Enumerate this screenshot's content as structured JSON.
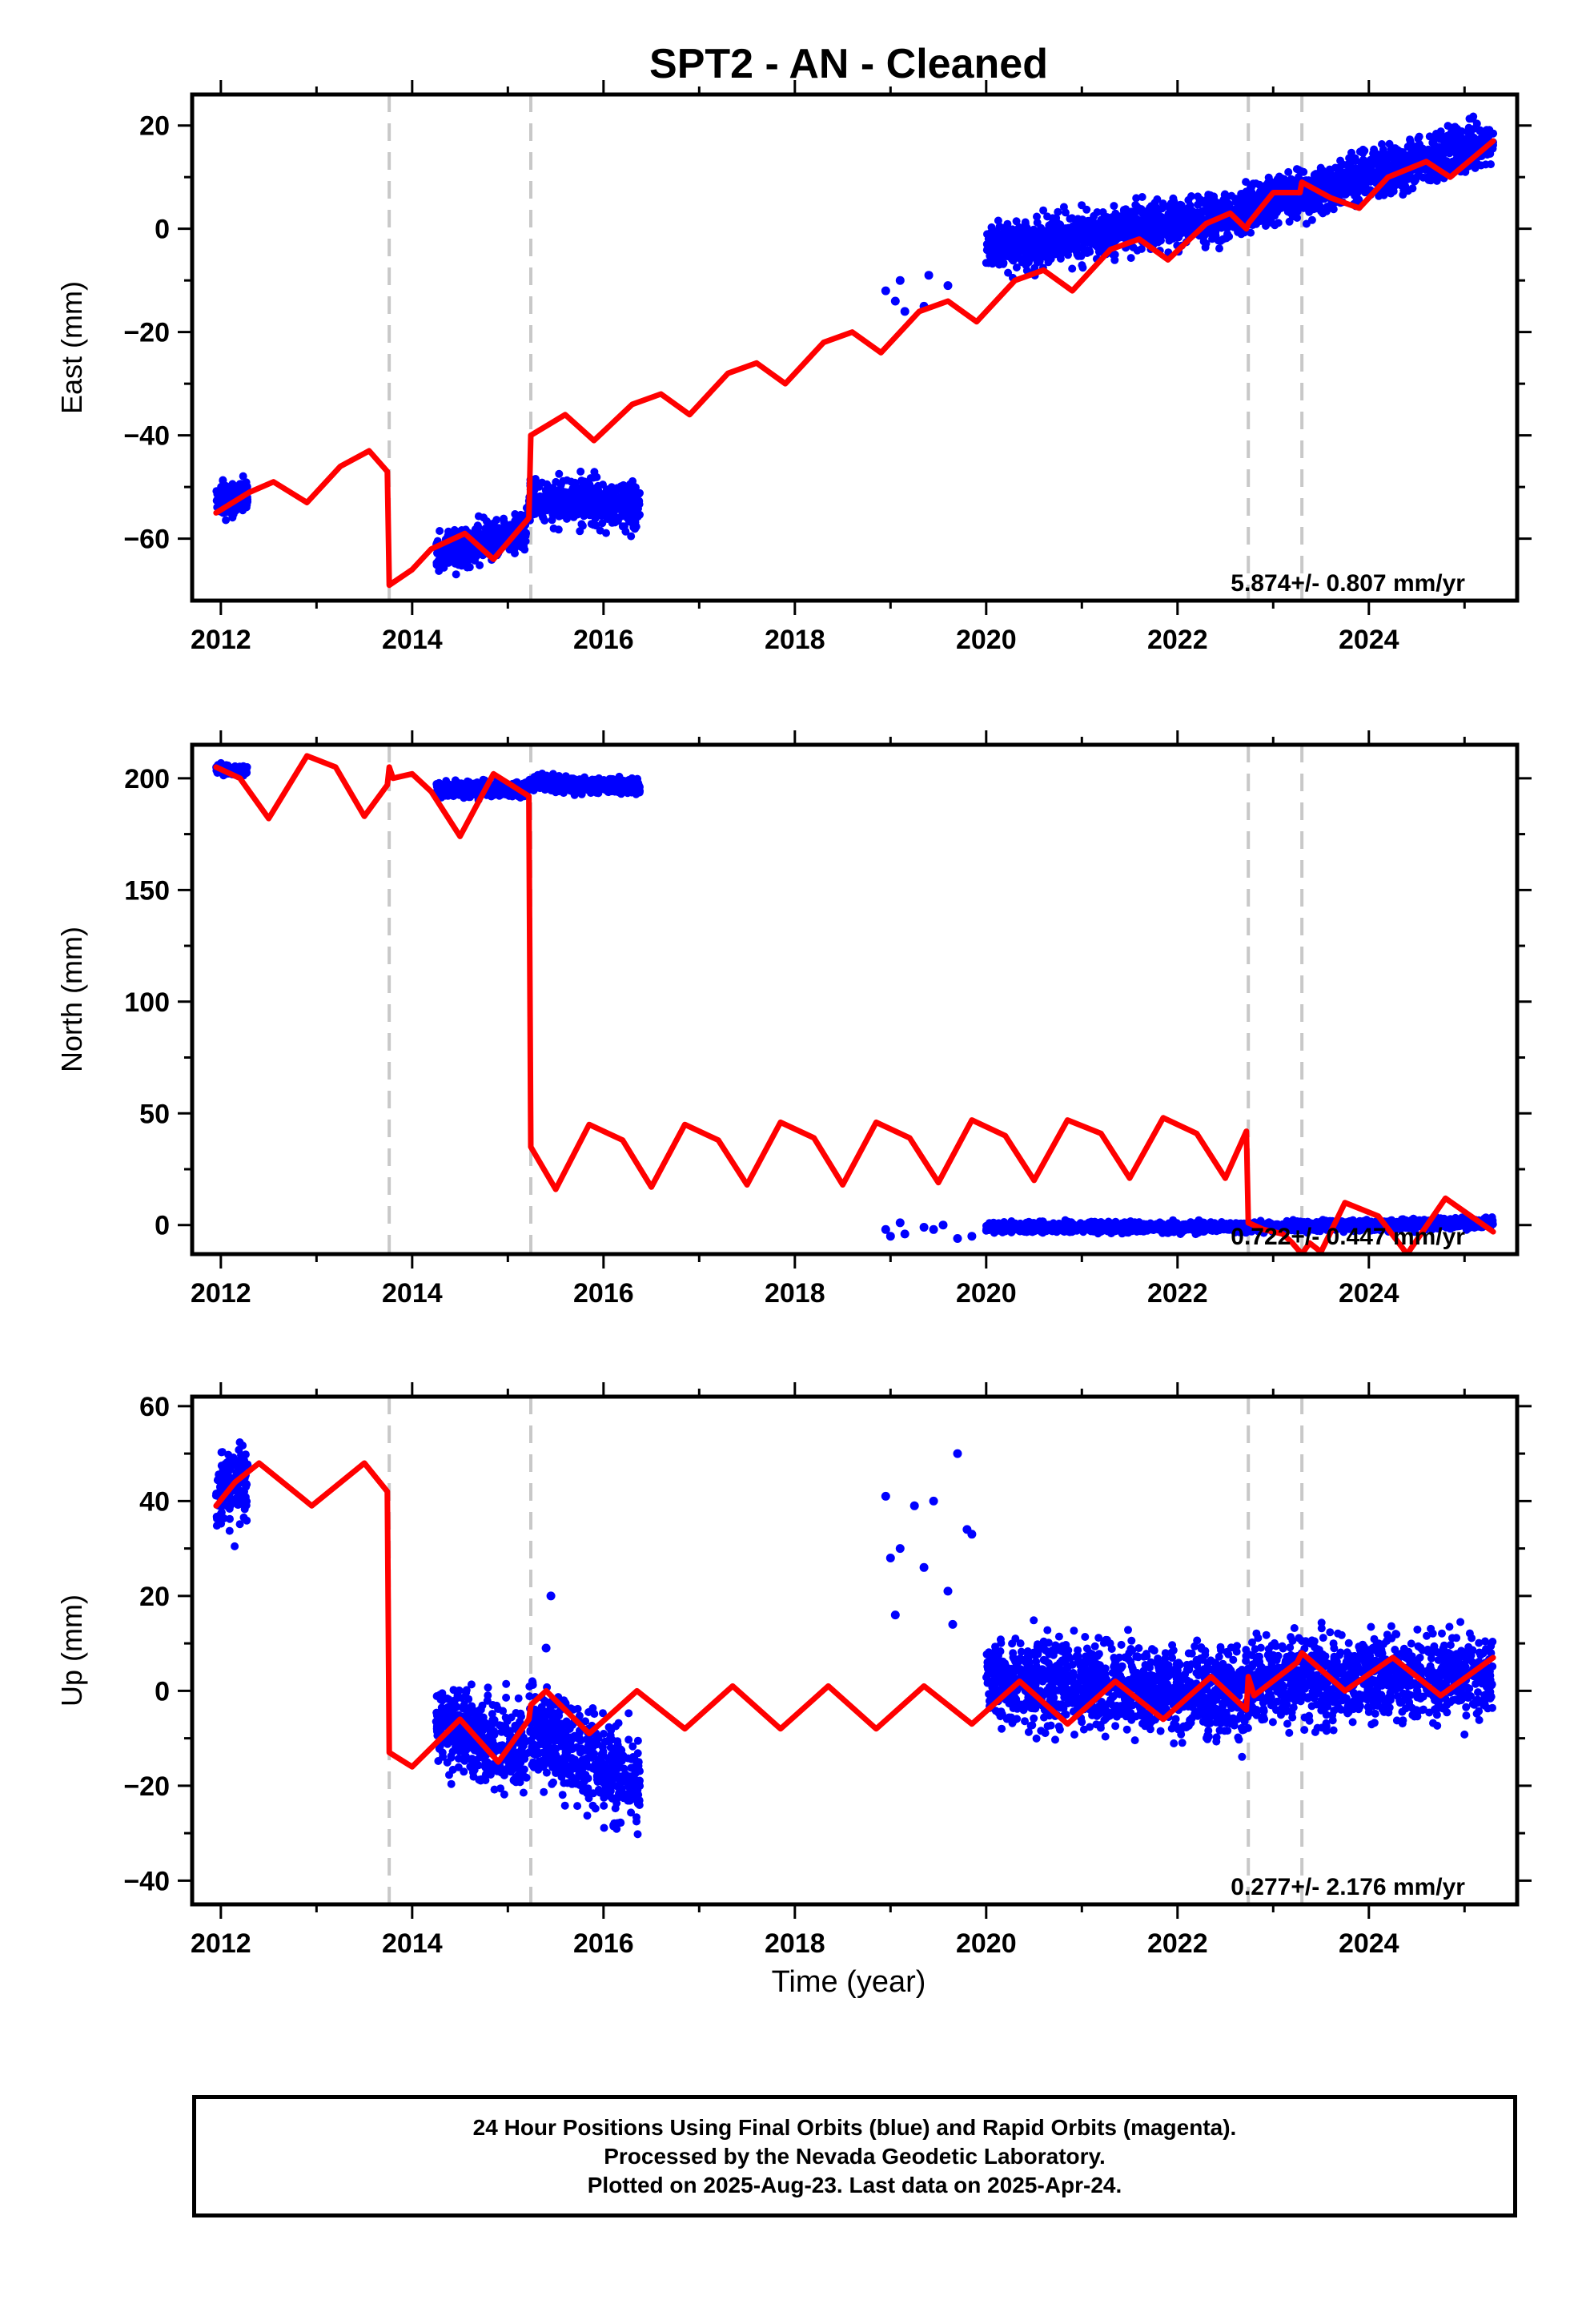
{
  "title": "SPT2  - AN - Cleaned",
  "x_label": "Time (year)",
  "footer": {
    "line1": "24 Hour Positions Using Final Orbits (blue) and Rapid Orbits (magenta).",
    "line2": "Processed by the Nevada Geodetic Laboratory.",
    "line3": "Plotted on 2025-Aug-23. Last data on 2025-Apr-24."
  },
  "colors": {
    "final_orbit_points": "#0000ff",
    "model_line": "#ff0000",
    "event_lines": "#c8c8c8",
    "frame": "#000000"
  },
  "chart_data": [
    {
      "type": "scatter",
      "component": "east",
      "ylabel": "East (mm)",
      "xlabel": "",
      "xlim": [
        2011.7,
        2025.55
      ],
      "ylim": [
        -72,
        26
      ],
      "x_ticks": [
        2012,
        2014,
        2016,
        2018,
        2020,
        2022,
        2024
      ],
      "y_ticks": [
        -60,
        -40,
        -20,
        0,
        20
      ],
      "grid": false,
      "event_lines_x": [
        2013.76,
        2015.24,
        2022.74,
        2023.3
      ],
      "rate_label": "5.874+/- 0.807 mm/yr",
      "series": [
        {
          "role": "observations",
          "segments": [
            {
              "x0": 2011.95,
              "x1": 2012.28,
              "y_start": -53,
              "y_end": -52,
              "scatter": 3.5
            },
            {
              "x0": 2014.25,
              "x1": 2015.2,
              "y_start": -63,
              "y_end": -58,
              "scatter": 3.5
            },
            {
              "x0": 2015.22,
              "x1": 2016.38,
              "y_start": -52,
              "y_end": -54,
              "scatter": 4
            },
            {
              "x0": 2020.0,
              "x1": 2022.7,
              "y_start": -4,
              "y_end": 3,
              "scatter": 4
            },
            {
              "x0": 2022.7,
              "x1": 2025.3,
              "y_start": 4,
              "y_end": 17,
              "scatter": 4
            }
          ],
          "isolated_points": [
            [
              2018.95,
              -12
            ],
            [
              2019.05,
              -14
            ],
            [
              2019.1,
              -10
            ],
            [
              2019.15,
              -16
            ],
            [
              2019.35,
              -15
            ],
            [
              2019.4,
              -9
            ],
            [
              2019.6,
              -11
            ]
          ]
        },
        {
          "role": "model",
          "points": [
            [
              2011.95,
              -55
            ],
            [
              2012.3,
              -51
            ],
            [
              2012.55,
              -49
            ],
            [
              2012.9,
              -53
            ],
            [
              2013.25,
              -46
            ],
            [
              2013.55,
              -43
            ],
            [
              2013.74,
              -47
            ],
            [
              2013.76,
              -69
            ],
            [
              2014.0,
              -66
            ],
            [
              2014.2,
              -62
            ],
            [
              2014.55,
              -59
            ],
            [
              2014.85,
              -64
            ],
            [
              2015.22,
              -56
            ],
            [
              2015.24,
              -40
            ],
            [
              2015.6,
              -36
            ],
            [
              2015.9,
              -41
            ],
            [
              2016.3,
              -34
            ],
            [
              2016.6,
              -32
            ],
            [
              2016.9,
              -36
            ],
            [
              2017.3,
              -28
            ],
            [
              2017.6,
              -26
            ],
            [
              2017.9,
              -30
            ],
            [
              2018.3,
              -22
            ],
            [
              2018.6,
              -20
            ],
            [
              2018.9,
              -24
            ],
            [
              2019.3,
              -16
            ],
            [
              2019.6,
              -14
            ],
            [
              2019.9,
              -18
            ],
            [
              2020.3,
              -10
            ],
            [
              2020.6,
              -8
            ],
            [
              2020.9,
              -12
            ],
            [
              2021.3,
              -4
            ],
            [
              2021.6,
              -2
            ],
            [
              2021.9,
              -6
            ],
            [
              2022.3,
              1
            ],
            [
              2022.55,
              3
            ],
            [
              2022.72,
              0
            ],
            [
              2022.74,
              1
            ],
            [
              2023.0,
              7
            ],
            [
              2023.28,
              7
            ],
            [
              2023.3,
              9
            ],
            [
              2023.6,
              6
            ],
            [
              2023.9,
              4
            ],
            [
              2024.2,
              10
            ],
            [
              2024.6,
              13
            ],
            [
              2024.85,
              10
            ],
            [
              2025.3,
              17
            ]
          ]
        }
      ]
    },
    {
      "type": "scatter",
      "component": "north",
      "ylabel": "North (mm)",
      "xlabel": "",
      "xlim": [
        2011.7,
        2025.55
      ],
      "ylim": [
        -13,
        215
      ],
      "x_ticks": [
        2012,
        2014,
        2016,
        2018,
        2020,
        2022,
        2024
      ],
      "y_ticks": [
        0,
        50,
        100,
        150,
        200
      ],
      "grid": false,
      "event_lines_x": [
        2013.76,
        2015.24,
        2022.74,
        2023.3
      ],
      "rate_label": "0.722+/- 0.447 mm/yr",
      "series": [
        {
          "role": "observations",
          "segments": [
            {
              "x0": 2011.95,
              "x1": 2012.28,
              "y_start": 204,
              "y_end": 203,
              "scatter": 2
            },
            {
              "x0": 2014.25,
              "x1": 2015.2,
              "y_start": 195,
              "y_end": 195,
              "scatter": 3
            },
            {
              "x0": 2015.22,
              "x1": 2016.38,
              "y_start": 198,
              "y_end": 196,
              "scatter": 3
            },
            {
              "x0": 2020.0,
              "x1": 2022.7,
              "y_start": -1,
              "y_end": -1,
              "scatter": 2
            },
            {
              "x0": 2022.7,
              "x1": 2025.3,
              "y_start": -1,
              "y_end": 1,
              "scatter": 2
            }
          ],
          "isolated_points": [
            [
              2018.95,
              -2
            ],
            [
              2019.0,
              -5
            ],
            [
              2019.1,
              1
            ],
            [
              2019.15,
              -4
            ],
            [
              2019.35,
              -1
            ],
            [
              2019.45,
              -2
            ],
            [
              2019.55,
              0
            ],
            [
              2019.7,
              -6
            ],
            [
              2019.85,
              -5
            ]
          ]
        },
        {
          "role": "model",
          "points": [
            [
              2011.95,
              205
            ],
            [
              2012.2,
              200
            ],
            [
              2012.5,
              182
            ],
            [
              2012.9,
              210
            ],
            [
              2013.2,
              205
            ],
            [
              2013.5,
              183
            ],
            [
              2013.74,
              197
            ],
            [
              2013.76,
              205
            ],
            [
              2013.8,
              200
            ],
            [
              2014.0,
              202
            ],
            [
              2014.2,
              194
            ],
            [
              2014.5,
              174
            ],
            [
              2014.85,
              202
            ],
            [
              2015.22,
              192
            ],
            [
              2015.24,
              35
            ],
            [
              2015.5,
              16
            ],
            [
              2015.85,
              45
            ],
            [
              2016.2,
              38
            ],
            [
              2016.5,
              17
            ],
            [
              2016.85,
              45
            ],
            [
              2017.2,
              38
            ],
            [
              2017.5,
              18
            ],
            [
              2017.85,
              46
            ],
            [
              2018.2,
              39
            ],
            [
              2018.5,
              18
            ],
            [
              2018.85,
              46
            ],
            [
              2019.2,
              39
            ],
            [
              2019.5,
              19
            ],
            [
              2019.85,
              47
            ],
            [
              2020.2,
              40
            ],
            [
              2020.5,
              20
            ],
            [
              2020.85,
              47
            ],
            [
              2021.2,
              41
            ],
            [
              2021.5,
              21
            ],
            [
              2021.85,
              48
            ],
            [
              2022.2,
              41
            ],
            [
              2022.5,
              21
            ],
            [
              2022.72,
              42
            ],
            [
              2022.74,
              1
            ],
            [
              2022.9,
              -2
            ],
            [
              2023.1,
              -4
            ],
            [
              2023.2,
              -8
            ],
            [
              2023.3,
              -13
            ],
            [
              2023.38,
              -8
            ],
            [
              2023.5,
              -12
            ],
            [
              2023.75,
              10
            ],
            [
              2024.1,
              4
            ],
            [
              2024.4,
              -13
            ],
            [
              2024.8,
              12
            ],
            [
              2025.3,
              -3
            ]
          ]
        }
      ]
    },
    {
      "type": "scatter",
      "component": "up",
      "ylabel": "Up (mm)",
      "xlabel": "Time (year)",
      "xlim": [
        2011.7,
        2025.55
      ],
      "ylim": [
        -45,
        62
      ],
      "x_ticks": [
        2012,
        2014,
        2016,
        2018,
        2020,
        2022,
        2024
      ],
      "y_ticks": [
        -40,
        -20,
        0,
        20,
        40,
        60
      ],
      "grid": false,
      "event_lines_x": [
        2013.76,
        2015.24,
        2022.74,
        2023.3
      ],
      "rate_label": "0.277+/- 2.176 mm/yr",
      "series": [
        {
          "role": "observations",
          "segments": [
            {
              "x0": 2011.95,
              "x1": 2012.28,
              "y_start": 40,
              "y_end": 45,
              "scatter": 8
            },
            {
              "x0": 2014.25,
              "x1": 2015.2,
              "y_start": -7,
              "y_end": -13,
              "scatter": 8
            },
            {
              "x0": 2015.22,
              "x1": 2016.38,
              "y_start": -8,
              "y_end": -20,
              "scatter": 9
            },
            {
              "x0": 2020.0,
              "x1": 2022.7,
              "y_start": 3,
              "y_end": -1,
              "scatter": 8
            },
            {
              "x0": 2022.7,
              "x1": 2025.3,
              "y_start": 2,
              "y_end": 3,
              "scatter": 8
            }
          ],
          "isolated_points": [
            [
              2018.95,
              41
            ],
            [
              2019.0,
              28
            ],
            [
              2019.05,
              16
            ],
            [
              2019.1,
              30
            ],
            [
              2019.25,
              39
            ],
            [
              2019.35,
              26
            ],
            [
              2019.45,
              40
            ],
            [
              2019.6,
              21
            ],
            [
              2019.65,
              14
            ],
            [
              2019.7,
              50
            ],
            [
              2019.8,
              34
            ],
            [
              2019.85,
              33
            ],
            [
              2015.45,
              20
            ],
            [
              2015.4,
              9
            ]
          ]
        },
        {
          "role": "model",
          "points": [
            [
              2011.95,
              39
            ],
            [
              2012.15,
              44
            ],
            [
              2012.4,
              48
            ],
            [
              2012.95,
              39
            ],
            [
              2013.5,
              48
            ],
            [
              2013.74,
              42
            ],
            [
              2013.76,
              -13
            ],
            [
              2014.0,
              -16
            ],
            [
              2014.5,
              -6
            ],
            [
              2014.9,
              -15
            ],
            [
              2015.22,
              -6
            ],
            [
              2015.24,
              -3
            ],
            [
              2015.4,
              0
            ],
            [
              2015.85,
              -9
            ],
            [
              2016.35,
              0
            ],
            [
              2016.85,
              -8
            ],
            [
              2017.35,
              1
            ],
            [
              2017.85,
              -8
            ],
            [
              2018.35,
              1
            ],
            [
              2018.85,
              -8
            ],
            [
              2019.35,
              1
            ],
            [
              2019.85,
              -7
            ],
            [
              2020.35,
              2
            ],
            [
              2020.85,
              -7
            ],
            [
              2021.35,
              2
            ],
            [
              2021.85,
              -6
            ],
            [
              2022.35,
              3
            ],
            [
              2022.72,
              -4
            ],
            [
              2022.74,
              3
            ],
            [
              2022.8,
              -1
            ],
            [
              2023.25,
              6
            ],
            [
              2023.3,
              8
            ],
            [
              2023.75,
              0
            ],
            [
              2024.25,
              7
            ],
            [
              2024.75,
              -1
            ],
            [
              2025.3,
              7
            ]
          ]
        }
      ]
    }
  ]
}
